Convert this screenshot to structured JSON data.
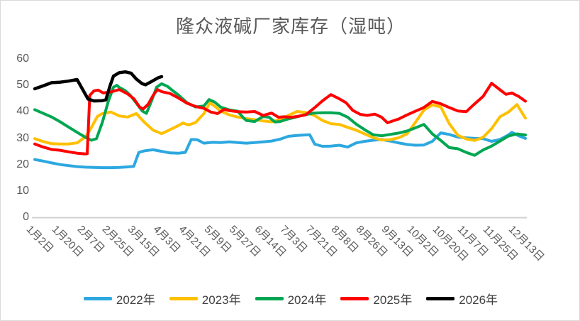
{
  "chart_data": {
    "type": "line",
    "title": "隆众液碱厂家库存（湿吨）",
    "xlabel": "",
    "ylabel": "",
    "ylim": [
      0,
      60
    ],
    "y_ticks": [
      0,
      10,
      20,
      30,
      40,
      50,
      60
    ],
    "grid": false,
    "legend_position": "bottom",
    "x_tick_labels": [
      "1月2日",
      "1月20日",
      "2月7日",
      "2月25日",
      "3月15日",
      "4月3日",
      "4月21日",
      "5月9日",
      "5月27日",
      "6月14日",
      "7月3日",
      "7月21日",
      "8月8日",
      "8月26日",
      "9月13日",
      "10月2日",
      "10月20日",
      "11月7日",
      "11月25日",
      "12月13日"
    ],
    "x_index_max": 58,
    "tick_index_step": 3,
    "series": [
      {
        "name": "2022年",
        "color": "#2DA8E0",
        "points": [
          [
            0,
            21.9
          ],
          [
            1,
            21.3
          ],
          [
            2,
            20.6
          ],
          [
            3,
            20.0
          ],
          [
            4,
            19.6
          ],
          [
            5,
            19.2
          ],
          [
            6,
            19.0
          ],
          [
            7,
            18.9
          ],
          [
            8,
            18.8
          ],
          [
            9,
            18.8
          ],
          [
            10,
            18.9
          ],
          [
            11,
            19.1
          ],
          [
            11.7,
            19.3
          ],
          [
            12.3,
            24.6
          ],
          [
            13,
            25.2
          ],
          [
            14,
            25.6
          ],
          [
            15,
            25.0
          ],
          [
            16,
            24.4
          ],
          [
            17,
            24.3
          ],
          [
            17.8,
            24.6
          ],
          [
            18.5,
            29.5
          ],
          [
            19.2,
            29.4
          ],
          [
            20,
            28.1
          ],
          [
            21,
            28.4
          ],
          [
            22,
            28.3
          ],
          [
            23,
            28.6
          ],
          [
            24,
            28.3
          ],
          [
            25,
            28.1
          ],
          [
            26,
            28.3
          ],
          [
            27,
            28.6
          ],
          [
            28,
            28.9
          ],
          [
            29,
            29.6
          ],
          [
            30,
            30.7
          ],
          [
            31,
            31.0
          ],
          [
            32,
            31.2
          ],
          [
            32.5,
            31.3
          ],
          [
            33.1,
            27.7
          ],
          [
            34,
            26.9
          ],
          [
            35,
            27.0
          ],
          [
            36,
            27.3
          ],
          [
            37,
            26.6
          ],
          [
            38,
            28.2
          ],
          [
            39,
            28.8
          ],
          [
            40,
            29.2
          ],
          [
            41,
            29.5
          ],
          [
            42,
            28.9
          ],
          [
            43,
            28.2
          ],
          [
            44,
            27.6
          ],
          [
            45,
            27.3
          ],
          [
            46,
            27.4
          ],
          [
            47,
            28.8
          ],
          [
            48,
            32.0
          ],
          [
            49,
            31.4
          ],
          [
            50,
            30.4
          ],
          [
            51,
            30.1
          ],
          [
            52,
            29.9
          ],
          [
            53,
            29.8
          ],
          [
            54,
            28.8
          ],
          [
            55,
            29.5
          ],
          [
            56,
            31.2
          ],
          [
            56.4,
            32.2
          ],
          [
            57.2,
            30.9
          ],
          [
            58,
            29.9
          ]
        ]
      },
      {
        "name": "2023年",
        "color": "#FFC000",
        "points": [
          [
            0,
            29.8
          ],
          [
            1,
            28.7
          ],
          [
            2,
            27.9
          ],
          [
            3,
            27.8
          ],
          [
            4,
            27.8
          ],
          [
            5,
            28.2
          ],
          [
            6,
            30.5
          ],
          [
            6.7,
            34.0
          ],
          [
            7.4,
            38.2
          ],
          [
            8,
            39.3
          ],
          [
            9,
            39.9
          ],
          [
            10,
            38.4
          ],
          [
            11,
            38.0
          ],
          [
            12,
            39.3
          ],
          [
            13,
            35.9
          ],
          [
            14,
            33.0
          ],
          [
            15,
            31.7
          ],
          [
            16,
            33.2
          ],
          [
            17,
            34.8
          ],
          [
            17.5,
            35.7
          ],
          [
            18.2,
            35.0
          ],
          [
            19,
            35.9
          ],
          [
            20,
            39.3
          ],
          [
            20.7,
            43.4
          ],
          [
            21.4,
            41.8
          ],
          [
            22,
            40.2
          ],
          [
            23,
            38.8
          ],
          [
            24,
            38.0
          ],
          [
            25,
            37.4
          ],
          [
            26,
            37.0
          ],
          [
            27,
            36.5
          ],
          [
            28,
            36.2
          ],
          [
            29,
            37.0
          ],
          [
            30,
            38.6
          ],
          [
            31,
            40.1
          ],
          [
            32,
            39.7
          ],
          [
            33,
            38.7
          ],
          [
            34,
            36.7
          ],
          [
            35,
            35.5
          ],
          [
            36,
            35.2
          ],
          [
            37,
            34.1
          ],
          [
            38,
            33.0
          ],
          [
            39,
            31.6
          ],
          [
            40,
            30.2
          ],
          [
            41,
            29.3
          ],
          [
            42,
            29.4
          ],
          [
            43,
            30.1
          ],
          [
            44,
            31.6
          ],
          [
            45,
            36.0
          ],
          [
            46,
            40.6
          ],
          [
            47,
            42.6
          ],
          [
            48,
            41.8
          ],
          [
            49,
            35.5
          ],
          [
            50,
            31.1
          ],
          [
            51,
            29.7
          ],
          [
            52,
            29.1
          ],
          [
            53,
            30.3
          ],
          [
            54,
            33.6
          ],
          [
            55,
            38.1
          ],
          [
            56,
            39.9
          ],
          [
            57,
            42.7
          ],
          [
            58,
            37.6
          ]
        ]
      },
      {
        "name": "2024年",
        "color": "#00A651",
        "points": [
          [
            0,
            40.8
          ],
          [
            1,
            39.4
          ],
          [
            2,
            38.0
          ],
          [
            3,
            36.2
          ],
          [
            4,
            34.2
          ],
          [
            5,
            32.2
          ],
          [
            6,
            30.3
          ],
          [
            6.7,
            29.2
          ],
          [
            7.3,
            29.8
          ],
          [
            8,
            36.0
          ],
          [
            8.7,
            44.0
          ],
          [
            9.3,
            49.3
          ],
          [
            9.7,
            50.0
          ],
          [
            10,
            49.2
          ],
          [
            10.7,
            48.0
          ],
          [
            11.3,
            46.2
          ],
          [
            12,
            43.3
          ],
          [
            12.7,
            40.3
          ],
          [
            13.2,
            39.4
          ],
          [
            13.8,
            44.0
          ],
          [
            14.4,
            49.3
          ],
          [
            15,
            50.6
          ],
          [
            15.7,
            49.6
          ],
          [
            16.3,
            48.0
          ],
          [
            17,
            46.3
          ],
          [
            18,
            43.4
          ],
          [
            19,
            41.8
          ],
          [
            20,
            42.2
          ],
          [
            20.6,
            44.6
          ],
          [
            21.3,
            43.6
          ],
          [
            22,
            41.7
          ],
          [
            23,
            40.7
          ],
          [
            24,
            40.2
          ],
          [
            24.6,
            37.9
          ],
          [
            25,
            36.7
          ],
          [
            26,
            36.3
          ],
          [
            27,
            38.2
          ],
          [
            27.7,
            37.9
          ],
          [
            28.4,
            36.1
          ],
          [
            29,
            36.3
          ],
          [
            30,
            37.3
          ],
          [
            31,
            38.1
          ],
          [
            32,
            38.9
          ],
          [
            33,
            39.5
          ],
          [
            34,
            39.6
          ],
          [
            35,
            39.6
          ],
          [
            36,
            39.4
          ],
          [
            37,
            37.9
          ],
          [
            38,
            35.3
          ],
          [
            39,
            33.2
          ],
          [
            40,
            31.3
          ],
          [
            41,
            30.9
          ],
          [
            42,
            31.4
          ],
          [
            43,
            31.9
          ],
          [
            44,
            32.7
          ],
          [
            45,
            33.9
          ],
          [
            46,
            35.2
          ],
          [
            47,
            31.6
          ],
          [
            48,
            29.1
          ],
          [
            49,
            26.4
          ],
          [
            50,
            26.0
          ],
          [
            51,
            24.6
          ],
          [
            52,
            23.5
          ],
          [
            53,
            25.5
          ],
          [
            54,
            27.0
          ],
          [
            55,
            28.9
          ],
          [
            56,
            30.8
          ],
          [
            57,
            31.6
          ],
          [
            58,
            31.2
          ]
        ]
      },
      {
        "name": "2025年",
        "color": "#FF0000",
        "points": [
          [
            0,
            27.8
          ],
          [
            1,
            26.6
          ],
          [
            2,
            25.7
          ],
          [
            3,
            25.4
          ],
          [
            4,
            24.8
          ],
          [
            5,
            24.3
          ],
          [
            6,
            24.0
          ],
          [
            6.2,
            24.1
          ],
          [
            6.5,
            46.2
          ],
          [
            7,
            47.9
          ],
          [
            7.5,
            48.2
          ],
          [
            8.1,
            47.1
          ],
          [
            9,
            47.5
          ],
          [
            10,
            48.4
          ],
          [
            11,
            46.7
          ],
          [
            11.7,
            45.0
          ],
          [
            12.4,
            41.8
          ],
          [
            12.8,
            41.0
          ],
          [
            13.4,
            42.8
          ],
          [
            14,
            46.2
          ],
          [
            14.5,
            48.4
          ],
          [
            15,
            47.6
          ],
          [
            16,
            46.9
          ],
          [
            17,
            45.2
          ],
          [
            18,
            43.2
          ],
          [
            19,
            42.0
          ],
          [
            20,
            41.3
          ],
          [
            20.8,
            39.9
          ],
          [
            21.6,
            39.3
          ],
          [
            22.4,
            40.9
          ],
          [
            23,
            40.4
          ],
          [
            24,
            40.0
          ],
          [
            25,
            39.9
          ],
          [
            26,
            40.1
          ],
          [
            27,
            38.6
          ],
          [
            28,
            39.5
          ],
          [
            28.8,
            37.9
          ],
          [
            29.5,
            38.1
          ],
          [
            30.3,
            37.9
          ],
          [
            31,
            38.2
          ],
          [
            32,
            38.8
          ],
          [
            33,
            41.3
          ],
          [
            34,
            44.1
          ],
          [
            35,
            46.5
          ],
          [
            36,
            44.9
          ],
          [
            36.8,
            43.4
          ],
          [
            37.6,
            40.5
          ],
          [
            38.5,
            39.0
          ],
          [
            39.3,
            38.6
          ],
          [
            40.2,
            39.1
          ],
          [
            41,
            37.9
          ],
          [
            41.7,
            35.8
          ],
          [
            42.4,
            36.6
          ],
          [
            43,
            37.2
          ],
          [
            44,
            38.8
          ],
          [
            45,
            40.2
          ],
          [
            46,
            41.6
          ],
          [
            47,
            43.9
          ],
          [
            48,
            43.0
          ],
          [
            49,
            41.6
          ],
          [
            50,
            40.3
          ],
          [
            51,
            40.0
          ],
          [
            52,
            43.0
          ],
          [
            53,
            45.8
          ],
          [
            54,
            50.8
          ],
          [
            55,
            48.3
          ],
          [
            55.7,
            46.6
          ],
          [
            56.4,
            47.1
          ],
          [
            57.2,
            45.8
          ],
          [
            58,
            44.0
          ]
        ]
      },
      {
        "name": "2026年",
        "color": "#000000",
        "points": [
          [
            0,
            48.7
          ],
          [
            1,
            49.8
          ],
          [
            2,
            51.0
          ],
          [
            3,
            51.2
          ],
          [
            4,
            51.6
          ],
          [
            5,
            52.2
          ],
          [
            6.3,
            44.8
          ],
          [
            7,
            44.1
          ],
          [
            8,
            44.2
          ],
          [
            8.4,
            44.5
          ],
          [
            8.9,
            49.8
          ],
          [
            9.3,
            53.5
          ],
          [
            10,
            54.8
          ],
          [
            10.7,
            55.1
          ],
          [
            11.4,
            54.6
          ],
          [
            12,
            52.4
          ],
          [
            12.7,
            50.6
          ],
          [
            13.1,
            50.2
          ],
          [
            13.9,
            51.6
          ],
          [
            14.6,
            52.9
          ],
          [
            15,
            53.3
          ]
        ]
      }
    ]
  },
  "layout_colors": {
    "title_color": "#595959",
    "tick_color": "#595959",
    "legend_text_color": "#404040",
    "axis_line_color": "#d0d0d0",
    "background": "#ffffff"
  }
}
